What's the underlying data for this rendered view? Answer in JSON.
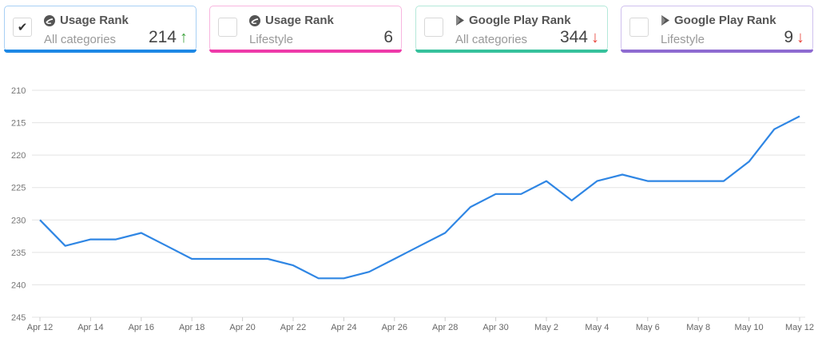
{
  "cards": [
    {
      "title": "Usage Rank",
      "subtitle": "All categories",
      "value": "214",
      "trend": "up",
      "icon": "similarweb-icon",
      "checked": true,
      "color": "#1e88e5",
      "border": "#a8d0f5"
    },
    {
      "title": "Usage Rank",
      "subtitle": "Lifestyle",
      "value": "6",
      "trend": "none",
      "icon": "similarweb-icon",
      "checked": false,
      "color": "#ee3aa9",
      "border": "#f8b6df"
    },
    {
      "title": "Google Play Rank",
      "subtitle": "All categories",
      "value": "344",
      "trend": "down",
      "icon": "google-play-icon",
      "checked": false,
      "color": "#36c19c",
      "border": "#b4e8d9"
    },
    {
      "title": "Google Play Rank",
      "subtitle": "Lifestyle",
      "value": "9",
      "trend": "down",
      "icon": "google-play-icon",
      "checked": false,
      "color": "#8e6bd1",
      "border": "#cfc0ee"
    }
  ],
  "trend_glyphs": {
    "up": "↑",
    "down": "↓",
    "none": ""
  },
  "chart_data": {
    "type": "line",
    "title": "",
    "xlabel": "",
    "ylabel": "",
    "y_inverted": true,
    "ylim": [
      210,
      245
    ],
    "yticks": [
      210,
      215,
      220,
      225,
      230,
      235,
      240,
      245
    ],
    "grid": true,
    "line_color": "#2f86e4",
    "x": [
      "Apr 12",
      "Apr 13",
      "Apr 14",
      "Apr 15",
      "Apr 16",
      "Apr 17",
      "Apr 18",
      "Apr 19",
      "Apr 20",
      "Apr 21",
      "Apr 22",
      "Apr 23",
      "Apr 24",
      "Apr 25",
      "Apr 26",
      "Apr 27",
      "Apr 28",
      "Apr 29",
      "Apr 30",
      "May 1",
      "May 2",
      "May 3",
      "May 4",
      "May 5",
      "May 6",
      "May 7",
      "May 8",
      "May 9",
      "May 10",
      "May 11",
      "May 12"
    ],
    "xtick_labels": [
      "Apr 12",
      "Apr 14",
      "Apr 16",
      "Apr 18",
      "Apr 20",
      "Apr 22",
      "Apr 24",
      "Apr 26",
      "Apr 28",
      "Apr 30",
      "May 2",
      "May 4",
      "May 6",
      "May 8",
      "May 10",
      "May 12"
    ],
    "series": [
      {
        "name": "Usage Rank - All categories",
        "values": [
          230,
          234,
          233,
          233,
          232,
          234,
          236,
          236,
          236,
          236,
          237,
          239,
          239,
          238,
          236,
          234,
          232,
          228,
          226,
          226,
          224,
          227,
          224,
          223,
          224,
          224,
          224,
          224,
          221,
          216,
          214
        ]
      }
    ]
  }
}
